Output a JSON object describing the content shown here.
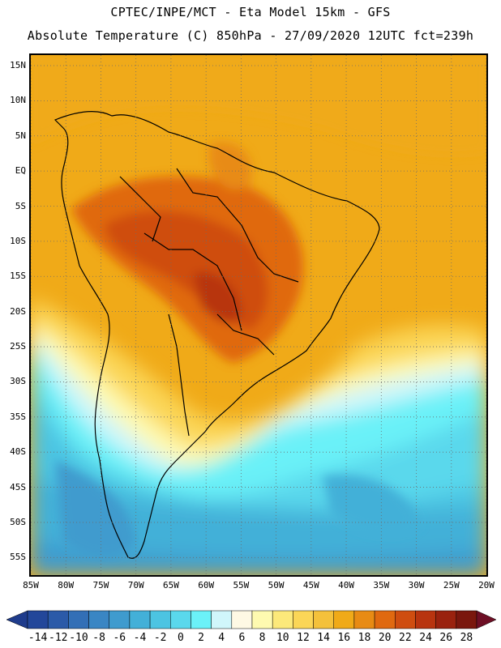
{
  "header": {
    "line1": "CPTEC/INPE/MCT -  Eta Model 15km - GFS",
    "line2": "Absolute Temperature (C) 850hPa - 27/09/2020 12UTC fct=239h"
  },
  "map": {
    "region": "South America",
    "variable": "Absolute Temperature (C) 850hPa",
    "lat_labels": [
      "15N",
      "10N",
      "5N",
      "EQ",
      "5S",
      "10S",
      "15S",
      "20S",
      "25S",
      "30S",
      "35S",
      "40S",
      "45S",
      "50S",
      "55S"
    ],
    "lat_values": [
      15,
      10,
      5,
      0,
      -5,
      -10,
      -15,
      -20,
      -25,
      -30,
      -35,
      -40,
      -45,
      -50,
      -55
    ],
    "lon_labels": [
      "85W",
      "80W",
      "75W",
      "70W",
      "65W",
      "60W",
      "55W",
      "50W",
      "45W",
      "40W",
      "35W",
      "30W",
      "25W",
      "20W"
    ],
    "lon_values": [
      -85,
      -80,
      -75,
      -70,
      -65,
      -60,
      -55,
      -50,
      -45,
      -40,
      -35,
      -30,
      -25,
      -20
    ],
    "extent": {
      "lon_min": -85,
      "lon_max": -20,
      "lat_min": -57.5,
      "lat_max": 16.5
    }
  },
  "colorbar": {
    "labels": [
      "-14",
      "-12",
      "-10",
      "-8",
      "-6",
      "-4",
      "-2",
      "0",
      "2",
      "4",
      "6",
      "8",
      "10",
      "12",
      "14",
      "16",
      "18",
      "20",
      "22",
      "24",
      "26",
      "28"
    ],
    "colors": [
      "#23479a",
      "#2b5aa8",
      "#336fb6",
      "#3a86c4",
      "#3f9bce",
      "#43b0d8",
      "#4cc4e2",
      "#5ad8ec",
      "#6bf1f8",
      "#d0f6fb",
      "#fef9e4",
      "#fefab0",
      "#fce97a",
      "#fbd657",
      "#f4c13b",
      "#f0aa18",
      "#e88b14",
      "#e06910",
      "#cf4d10",
      "#b8340f",
      "#9a220e",
      "#7a170d"
    ],
    "under_color": "#1f3c8c",
    "over_color": "#6e0f25"
  }
}
